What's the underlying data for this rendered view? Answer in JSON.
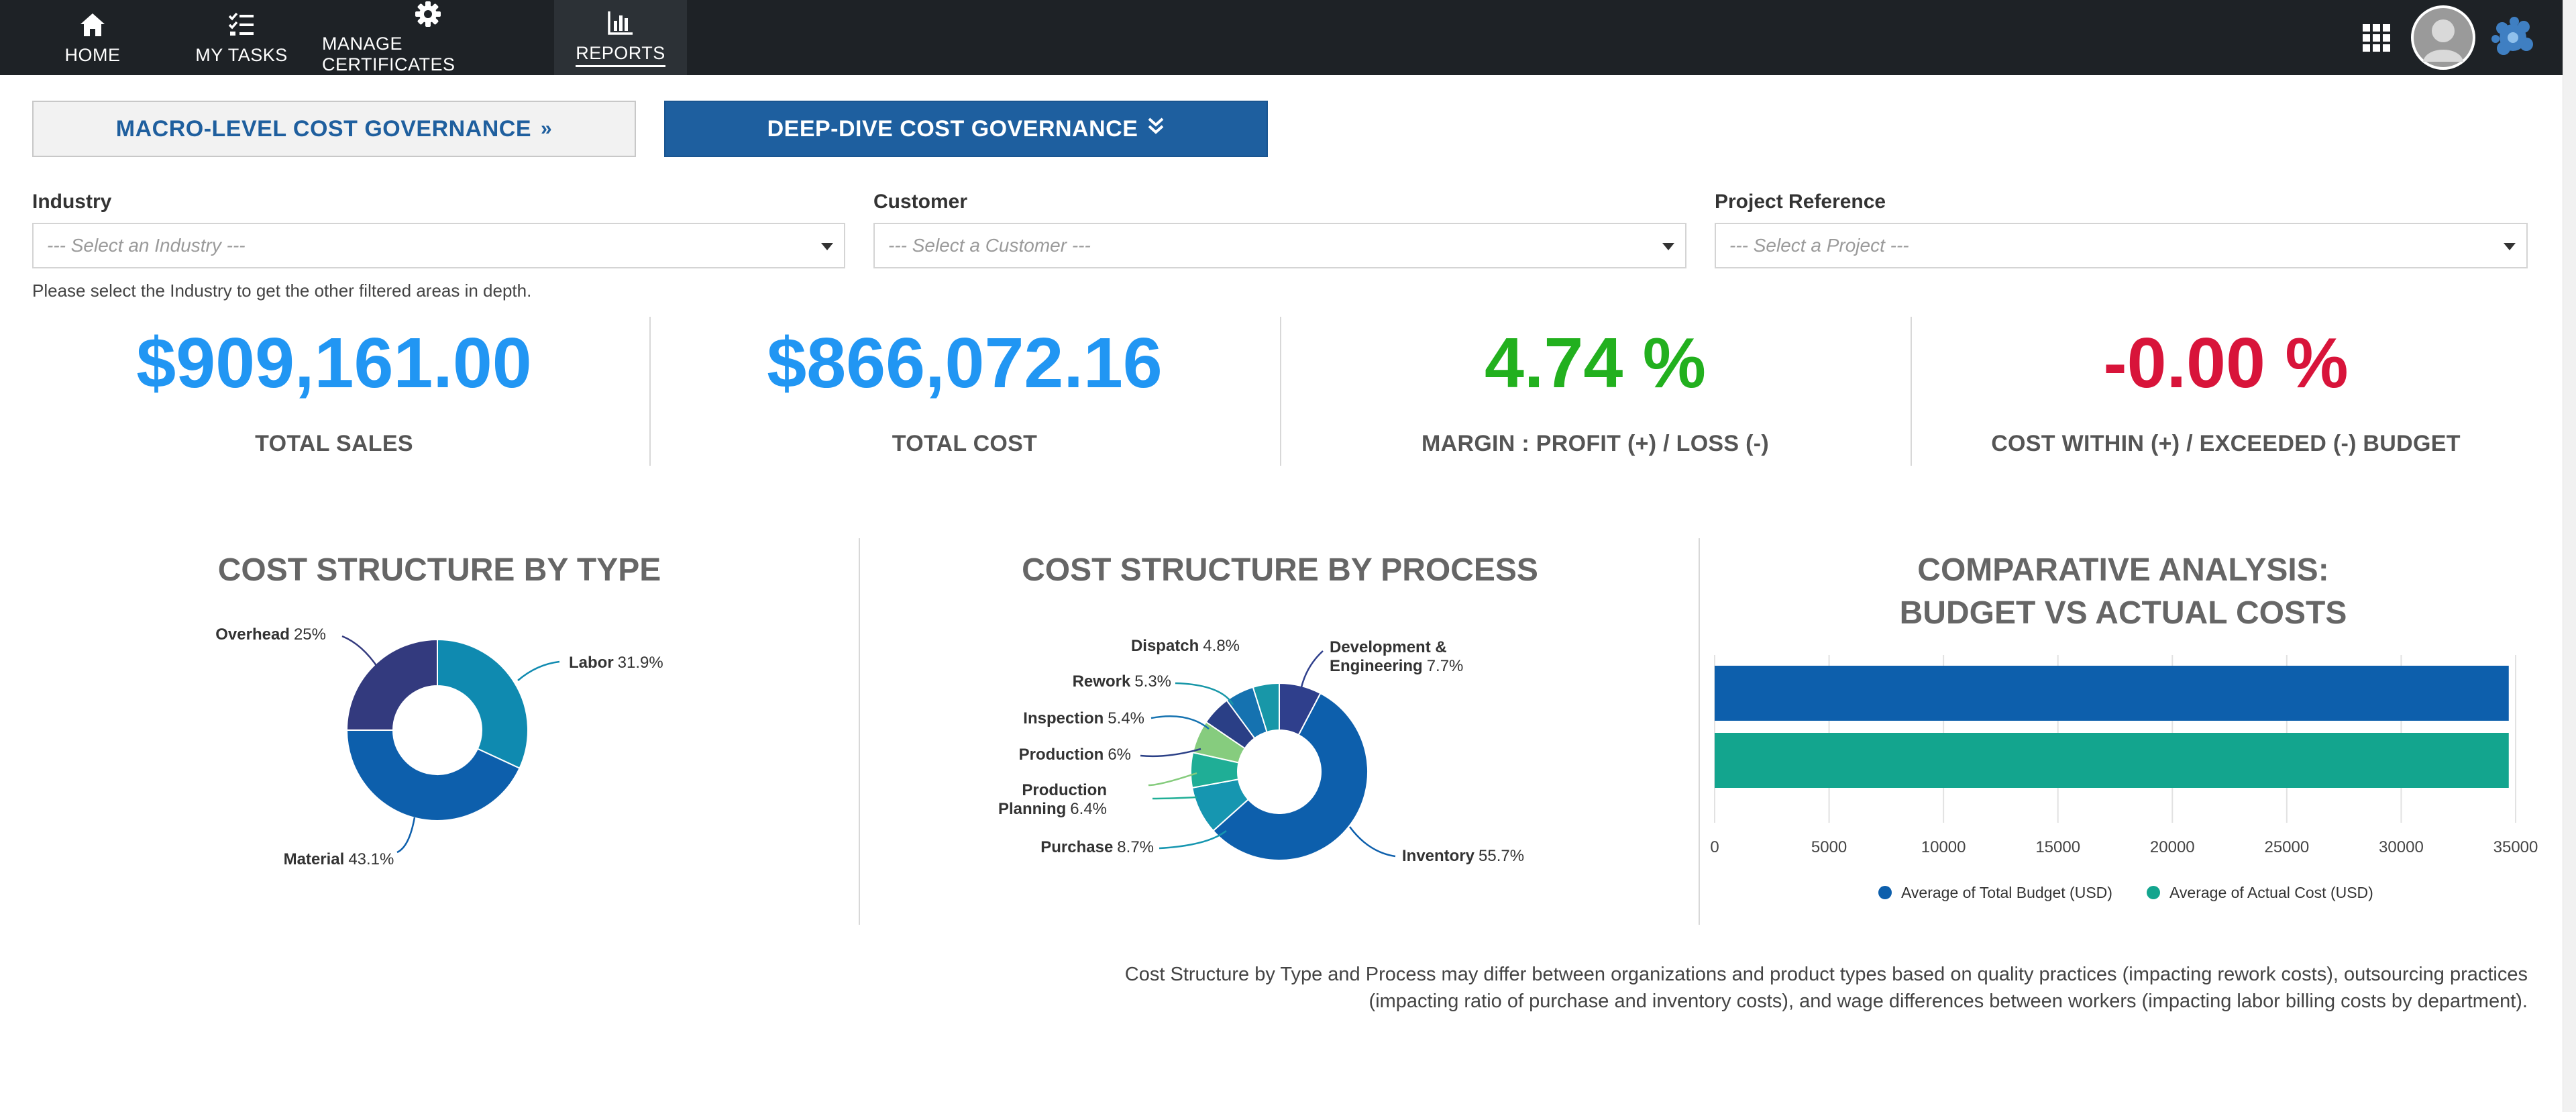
{
  "nav": {
    "items": [
      {
        "label": "HOME",
        "icon": "home-icon"
      },
      {
        "label": "MY TASKS",
        "icon": "tasks-icon"
      },
      {
        "label": "MANAGE CERTIFICATES",
        "icon": "gear-icon"
      },
      {
        "label": "REPORTS",
        "icon": "bar-chart-icon",
        "active": true
      }
    ],
    "right_icons": [
      "apps-grid-icon",
      "avatar",
      "brand-logo-icon"
    ]
  },
  "sections": {
    "macro_label": "MACRO-LEVEL COST GOVERNANCE",
    "deep_label": "DEEP-DIVE COST GOVERNANCE"
  },
  "filters": {
    "industry": {
      "label": "Industry",
      "placeholder": "--- Select an Industry ---"
    },
    "customer": {
      "label": "Customer",
      "placeholder": "--- Select a Customer ---"
    },
    "project": {
      "label": "Project Reference",
      "placeholder": "--- Select a Project ---"
    },
    "hint": "Please select the Industry to get the other filtered areas in depth."
  },
  "kpis": [
    {
      "value": "$909,161.00",
      "label": "TOTAL SALES",
      "color": "#2196f3"
    },
    {
      "value": "$866,072.16",
      "label": "TOTAL COST",
      "color": "#2196f3"
    },
    {
      "value": "4.74 %",
      "label": "MARGIN : PROFIT (+) / LOSS (-)",
      "color": "#22b01e"
    },
    {
      "value": "-0.00 %",
      "label": "COST WITHIN (+) / EXCEEDED (-) BUDGET",
      "color": "#d8143a"
    }
  ],
  "charts": {
    "by_type_title": "COST STRUCTURE BY TYPE",
    "by_process_title": "COST STRUCTURE BY PROCESS",
    "comparative_title_line1": "COMPARATIVE ANALYSIS:",
    "comparative_title_line2": "BUDGET VS ACTUAL COSTS"
  },
  "chart_data": [
    {
      "type": "pie",
      "title": "COST STRUCTURE BY TYPE",
      "slices": [
        {
          "label": "Labor",
          "pct_text": "31.9%",
          "value": 31.9,
          "color": "#0f8ab0"
        },
        {
          "label": "Material",
          "pct_text": "43.1%",
          "value": 43.1,
          "color": "#0d5fac"
        },
        {
          "label": "Overhead",
          "pct_text": "25%",
          "value": 25.0,
          "color": "#333a7e"
        }
      ]
    },
    {
      "type": "pie",
      "title": "COST STRUCTURE BY PROCESS",
      "slices": [
        {
          "label": "Development & Engineering",
          "label_lines": [
            "Development &",
            "Engineering"
          ],
          "pct_text": "7.7%",
          "value": 7.7,
          "color": "#2f3f8c"
        },
        {
          "label": "Inventory",
          "label_lines": [
            "Inventory"
          ],
          "pct_text": "55.7%",
          "value": 55.7,
          "color": "#0d5fac"
        },
        {
          "label": "Purchase",
          "label_lines": [
            "Purchase"
          ],
          "pct_text": "8.7%",
          "value": 8.7,
          "color": "#1696b0"
        },
        {
          "label": "Production Planning",
          "label_lines": [
            "Production",
            "Planning"
          ],
          "pct_text": "6.4%",
          "value": 6.4,
          "color": "#1fae96"
        },
        {
          "label": "Production",
          "label_lines": [
            "Production"
          ],
          "pct_text": "6%",
          "value": 6.0,
          "color": "#86cc7e"
        },
        {
          "label": "Inspection",
          "label_lines": [
            "Inspection"
          ],
          "pct_text": "5.4%",
          "value": 5.4,
          "color": "#2a3f86"
        },
        {
          "label": "Rework",
          "label_lines": [
            "Rework"
          ],
          "pct_text": "5.3%",
          "value": 5.3,
          "color": "#1572b0"
        },
        {
          "label": "Dispatch",
          "label_lines": [
            "Dispatch"
          ],
          "pct_text": "4.8%",
          "value": 4.8,
          "color": "#1897a8"
        }
      ]
    },
    {
      "type": "bar",
      "orientation": "horizontal",
      "title": "COMPARATIVE ANALYSIS: BUDGET VS ACTUAL COSTS",
      "series": [
        {
          "name": "Average of Total Budget (USD)",
          "values": [
            34700
          ],
          "color": "#0d5fac"
        },
        {
          "name": "Average of Actual Cost (USD)",
          "values": [
            34700
          ],
          "color": "#13a58e"
        }
      ],
      "xlim": [
        0,
        35000
      ],
      "xticks": [
        "0",
        "5000",
        "10000",
        "15000",
        "20000",
        "25000",
        "30000",
        "35000"
      ],
      "grid": true,
      "legend": "bottom"
    }
  ],
  "footnote": "Cost Structure by Type and Process may differ between organizations and product types based on quality practices (impacting rework costs), outsourcing practices (impacting ratio of purchase and inventory costs), and wage differences between workers (impacting labor billing costs by department)."
}
